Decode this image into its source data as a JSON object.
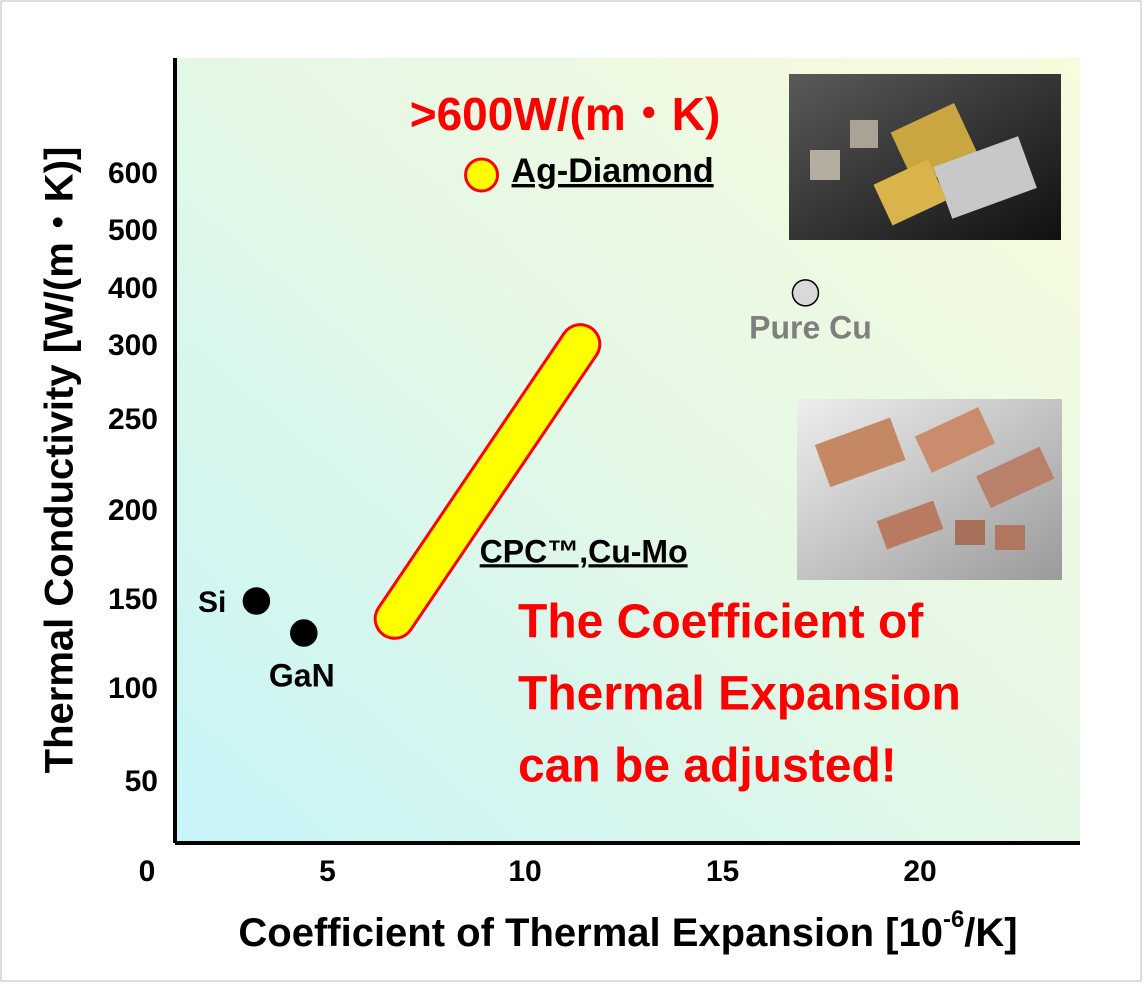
{
  "chart_data": {
    "type": "scatter",
    "title": ">600W/(m・K)",
    "x_label_parts": [
      "Coefficient of Thermal Expansion [10",
      "-6",
      "/K]"
    ],
    "y_label": "Thermal Conductivity [W/(m・K)]",
    "xlim": [
      0,
      24
    ],
    "xticks": [
      0,
      5,
      10,
      15,
      20
    ],
    "yticks": [
      50,
      100,
      150,
      200,
      250,
      300,
      400,
      500,
      600
    ],
    "series": [
      {
        "name": "Si",
        "color": "#000000",
        "x": [
          3.2
        ],
        "values": [
          150
        ]
      },
      {
        "name": "GaN",
        "color": "#000000",
        "x": [
          4.4
        ],
        "values": [
          132
        ]
      },
      {
        "name": "Ag-Diamond",
        "color": "#ffff00",
        "x": [
          8.9
        ],
        "values": [
          600
        ]
      },
      {
        "name": "Pure Cu",
        "color": "#d9d9d9",
        "x": [
          17.1
        ],
        "values": [
          395
        ]
      },
      {
        "name": "CPC™,Cu-Mo",
        "color": "#ffff00",
        "x": [
          6.7,
          11.4
        ],
        "values": [
          140,
          305
        ]
      }
    ],
    "annotation_lines": [
      "The Coefficient of",
      "Thermal Expansion",
      "can be adjusted!"
    ]
  }
}
